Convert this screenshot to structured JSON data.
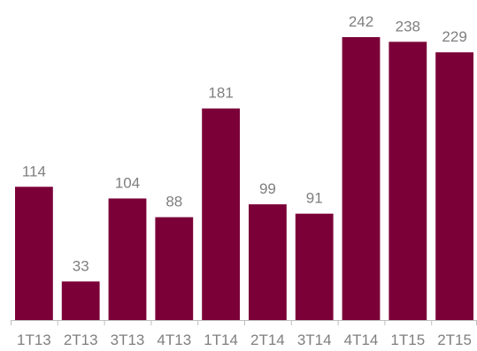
{
  "chart_data": {
    "type": "bar",
    "categories": [
      "1T13",
      "2T13",
      "3T13",
      "4T13",
      "1T14",
      "2T14",
      "3T14",
      "4T14",
      "1T15",
      "2T15"
    ],
    "values": [
      114,
      33,
      104,
      88,
      181,
      99,
      91,
      242,
      238,
      229
    ],
    "data_labels": [
      "114",
      "33",
      "104",
      "88",
      "181",
      "99",
      "91",
      "242",
      "238",
      "229"
    ],
    "title": "",
    "xlabel": "",
    "ylabel": "",
    "ylim": [
      0,
      250
    ],
    "grid": false,
    "legend": "none",
    "colors": {
      "bar": "#7b0038",
      "axis": "#bfbfbf",
      "label": "#7f7f7f"
    }
  }
}
